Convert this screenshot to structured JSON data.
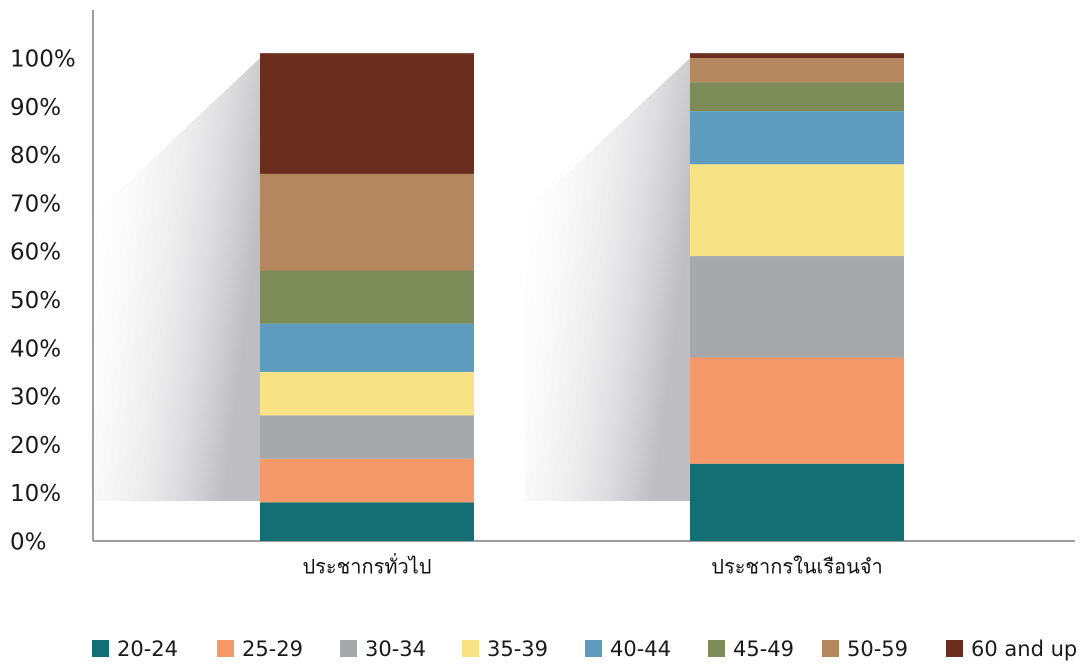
{
  "chart_data": {
    "type": "bar",
    "stacked": true,
    "title": "",
    "xlabel": "",
    "ylabel": "",
    "ylim": [
      0,
      100
    ],
    "y_ticks": [
      "0%",
      "10%",
      "20%",
      "30%",
      "40%",
      "50%",
      "60%",
      "70%",
      "80%",
      "90%",
      "100%"
    ],
    "categories": [
      "ประชากรทั่วไป",
      "ประชากรในเรือนจำ"
    ],
    "series": [
      {
        "name": "20-24",
        "color": "#136f73",
        "values": [
          8,
          16
        ]
      },
      {
        "name": "25-29",
        "color": "#f5986a",
        "values": [
          9,
          22
        ]
      },
      {
        "name": "30-34",
        "color": "#a7a8ab",
        "values": [
          9,
          21
        ]
      },
      {
        "name": "35-39",
        "color": "#f7e285",
        "values": [
          9,
          19
        ]
      },
      {
        "name": "40-44",
        "color": "#5f9bbd",
        "values": [
          10,
          11
        ]
      },
      {
        "name": "45-49",
        "color": "#7c8b57",
        "values": [
          11,
          6
        ]
      },
      {
        "name": "50-59",
        "color": "#b5875f",
        "values": [
          20,
          5
        ]
      },
      {
        "name": "60 and up",
        "color": "#6b2d1d",
        "values": [
          25,
          1
        ]
      }
    ],
    "legend_position": "bottom",
    "grid": false
  }
}
